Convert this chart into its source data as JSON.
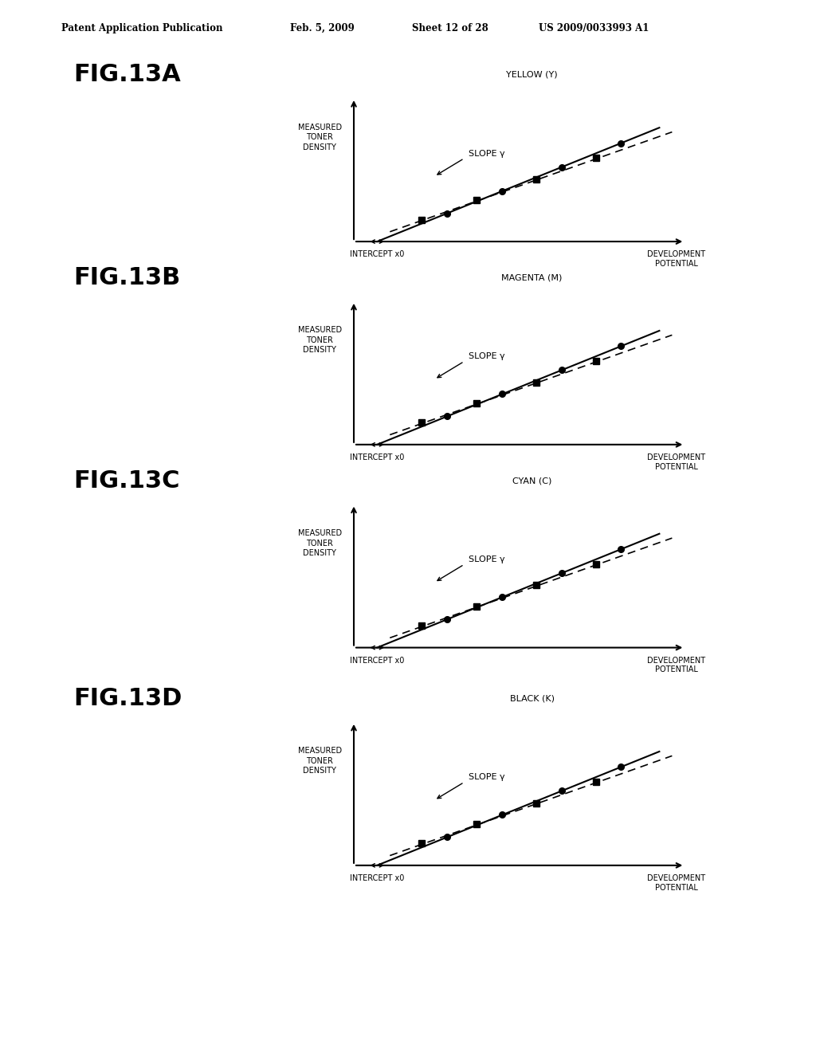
{
  "title_line1": "Patent Application Publication",
  "title_line2": "Feb. 5, 2009",
  "title_line3": "Sheet 12 of 28",
  "title_line4": "US 2009/0033993 A1",
  "panels": [
    {
      "fig_label": "FIG.13A",
      "color_label": "YELLOW (Y)",
      "slope_label": "SLOPE γ"
    },
    {
      "fig_label": "FIG.13B",
      "color_label": "MAGENTA (M)",
      "slope_label": "SLOPE γ"
    },
    {
      "fig_label": "FIG.13C",
      "color_label": "CYAN (C)",
      "slope_label": "SLOPE γ"
    },
    {
      "fig_label": "FIG.13D",
      "color_label": "BLACK (K)",
      "slope_label": "SLOPE γ"
    }
  ],
  "ylabel": "MEASURED\nTONER\nDENSITY",
  "xlabel_left": "INTERCEPT x0",
  "xlabel_right": "DEVELOPMENT\nPOTENTIAL",
  "bg_color": "#ffffff"
}
